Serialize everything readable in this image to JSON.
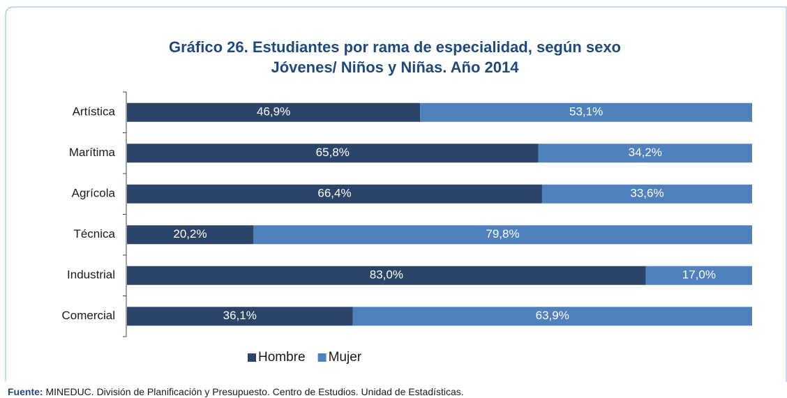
{
  "chart_data": {
    "type": "stacked-bar-horizontal",
    "title": "Gráfico 26. Estudiantes por rama de especialidad, según sexo",
    "subtitle": "Jóvenes/ Niños y Niñas. Año 2014",
    "categories": [
      "Artística",
      "Marítima",
      "Agrícola",
      "Técnica",
      "Industrial",
      "Comercial"
    ],
    "series": [
      {
        "name": "Hombre",
        "color": "#2b4468",
        "values": [
          46.9,
          65.8,
          66.4,
          20.2,
          83.0,
          36.1
        ],
        "value_labels": [
          "46,9%",
          "65,8%",
          "66,4%",
          "20,2%",
          "83,0%",
          "36,1%"
        ]
      },
      {
        "name": "Mujer",
        "color": "#4f81bd",
        "values": [
          53.1,
          34.2,
          33.6,
          79.8,
          17.0,
          63.9
        ],
        "value_labels": [
          "53,1%",
          "34,2%",
          "33,6%",
          "79,8%",
          "17,0%",
          "63,9%"
        ]
      }
    ],
    "xlim": [
      0,
      100
    ],
    "legend": "bottom"
  },
  "source_label": "Fuente:",
  "source": "MINEDUC. División de Planificación y Presupuesto. Centro de Estudios. Unidad de Estadísticas."
}
